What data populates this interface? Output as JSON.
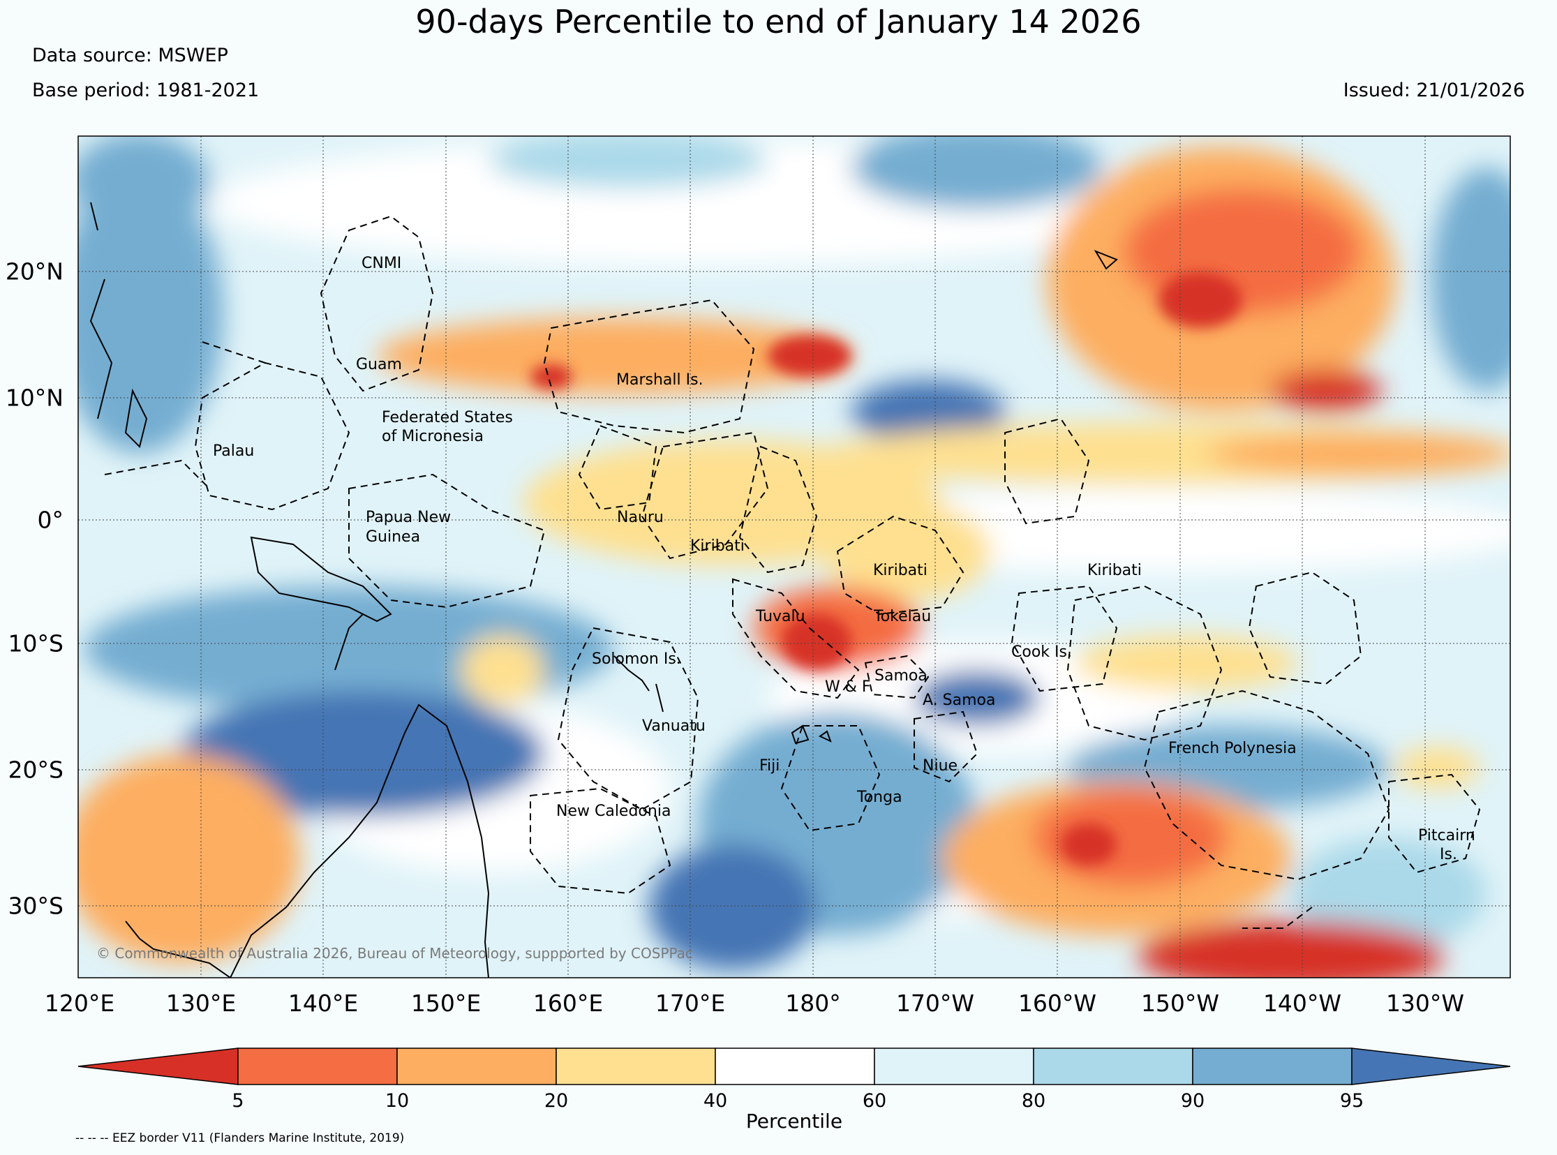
{
  "title": "90-days Percentile to end of January 14 2026",
  "data_source": "Data source: MSWEP",
  "base_period": "Base period: 1981-2021",
  "issued": "Issued: 21/01/2026",
  "copyright": "© Commonwealth of Australia 2026, Bureau of Meteorology, suppported by COSPPac",
  "eez_note": "-- -- -- EEZ border V11 (Flanders Marine Institute, 2019)",
  "longitude_labels": [
    "120°E",
    "130°E",
    "140°E",
    "150°E",
    "160°E",
    "170°E",
    "180°",
    "170°W",
    "160°W",
    "150°W",
    "140°W",
    "130°W"
  ],
  "latitude_labels": [
    "20°N",
    "10°N",
    "0°",
    "10°S",
    "20°S",
    "30°S"
  ],
  "colorbar": {
    "label": "Percentile",
    "ticks": [
      "5",
      "10",
      "20",
      "40",
      "60",
      "80",
      "90",
      "95"
    ],
    "colors": [
      "#d73027",
      "#f46d43",
      "#fdae61",
      "#fee090",
      "#ffffff",
      "#e0f3f8",
      "#abd9e9",
      "#74add1",
      "#4575b4"
    ]
  },
  "places": {
    "cnmi": "CNMI",
    "guam": "Guam",
    "marshall": "Marshall Is.",
    "fsm1": "Federated States",
    "fsm2": "of Micronesia",
    "palau": "Palau",
    "png1": "Papua New",
    "png2": "Guinea",
    "nauru": "Nauru",
    "kiribati_w": "Kiribati",
    "kiribati_c": "Kiribati",
    "kiribati_e": "Kiribati",
    "tuvalu": "Tuvalu",
    "tokelau": "Tokelau",
    "solomon": "Solomon Is.",
    "cook": "Cook Is.",
    "samoa": "Samoa",
    "wf": "W & F",
    "asamoa": "A. Samoa",
    "vanuatu": "Vanuatu",
    "fiji": "Fiji",
    "niue": "Niue",
    "tonga": "Tonga",
    "french_poly": "French Polynesia",
    "new_caledonia": "New Caledonia",
    "pitcairn1": "Pitcairn",
    "pitcairn2": "Is."
  }
}
